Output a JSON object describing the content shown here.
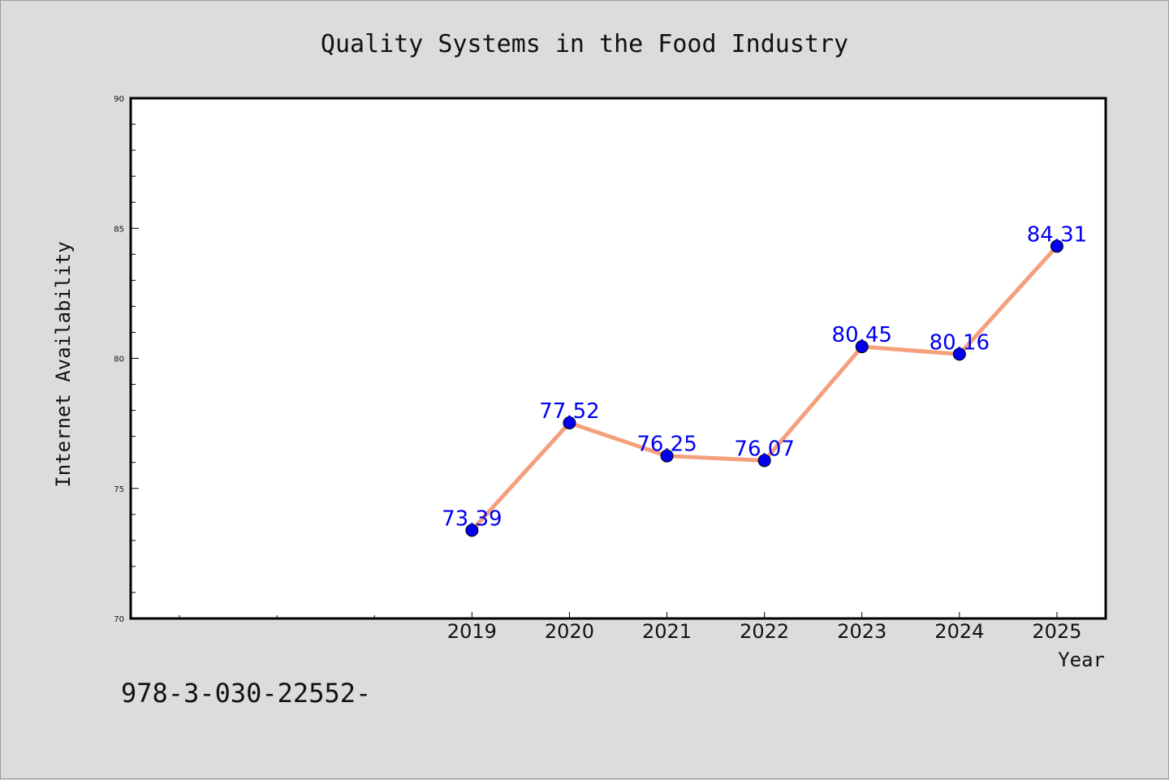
{
  "chart_data": {
    "type": "line",
    "title": "Quality Systems in the Food Industry",
    "xlabel": "Year",
    "ylabel": "Internet Availability",
    "categories": [
      "2019",
      "2020",
      "2021",
      "2022",
      "2023",
      "2024",
      "2025"
    ],
    "values": [
      73.39,
      77.52,
      76.25,
      76.07,
      80.45,
      80.16,
      84.31
    ],
    "data_labels": [
      "73.39",
      "77.52",
      "76.25",
      "76.07",
      "80.45",
      "80.16",
      "84.31"
    ],
    "ylim": [
      70,
      90
    ],
    "y_ticks": [
      70,
      75,
      80,
      85,
      90
    ],
    "y_minor_step": 1,
    "x_range": [
      2015.5,
      2025.5
    ],
    "grid": false,
    "legend": "none",
    "line_color": "#f4a07c",
    "marker_color": "#0000ee",
    "label_color": "#0000ee"
  },
  "footer_text": "978-3-030-22552-"
}
